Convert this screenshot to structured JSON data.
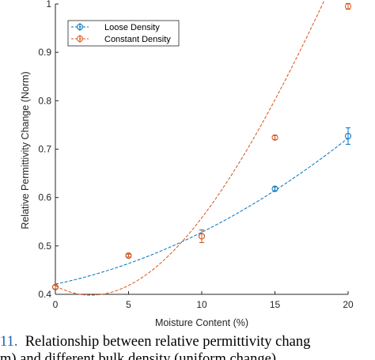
{
  "chart_data": {
    "type": "scatter",
    "title": "",
    "xlabel": "Moisture Content (%)",
    "ylabel": "Relative Permittivity Change (Norm)",
    "xlim": [
      0,
      20
    ],
    "ylim": [
      0.4,
      1.0
    ],
    "x_ticks": [
      0,
      5,
      10,
      15,
      20
    ],
    "x_tick_labels": [
      "0",
      "5",
      "10",
      "15",
      "20"
    ],
    "y_ticks": [
      0.4,
      0.5,
      0.6,
      0.7,
      0.8,
      0.9,
      1.0
    ],
    "y_tick_labels": [
      "0.4",
      "0.5",
      "0.6",
      "0.7",
      "0.8",
      "0.9",
      "1"
    ],
    "grid": false,
    "legend_position": "top-left",
    "series": [
      {
        "name": "Loose Density",
        "color": "#0072BD",
        "marker": "circle",
        "x": [
          0,
          5,
          10,
          15,
          20
        ],
        "y": [
          0.415,
          0.48,
          0.52,
          0.618,
          0.727
        ],
        "error": [
          0.004,
          0.003,
          0.013,
          0.004,
          0.017
        ],
        "fit": [
          0.421,
          0.00635,
          0.000437
        ]
      },
      {
        "name": "Constant Density",
        "color": "#D95319",
        "marker": "circle",
        "x": [
          0,
          5,
          10,
          15,
          20
        ],
        "y": [
          0.415,
          0.48,
          0.52,
          0.724,
          0.995
        ],
        "error": [
          0.004,
          0.003,
          0.013,
          0.004,
          0.006
        ],
        "fit": [
          0.4175,
          -0.0161,
          0.003485,
          -4.69e-05
        ]
      }
    ]
  },
  "caption": {
    "line1_fig": "11.",
    "line1_text": "Relationship between relative permittivity chang",
    "line2_text": "m) and different bulk density (uniform change)"
  }
}
